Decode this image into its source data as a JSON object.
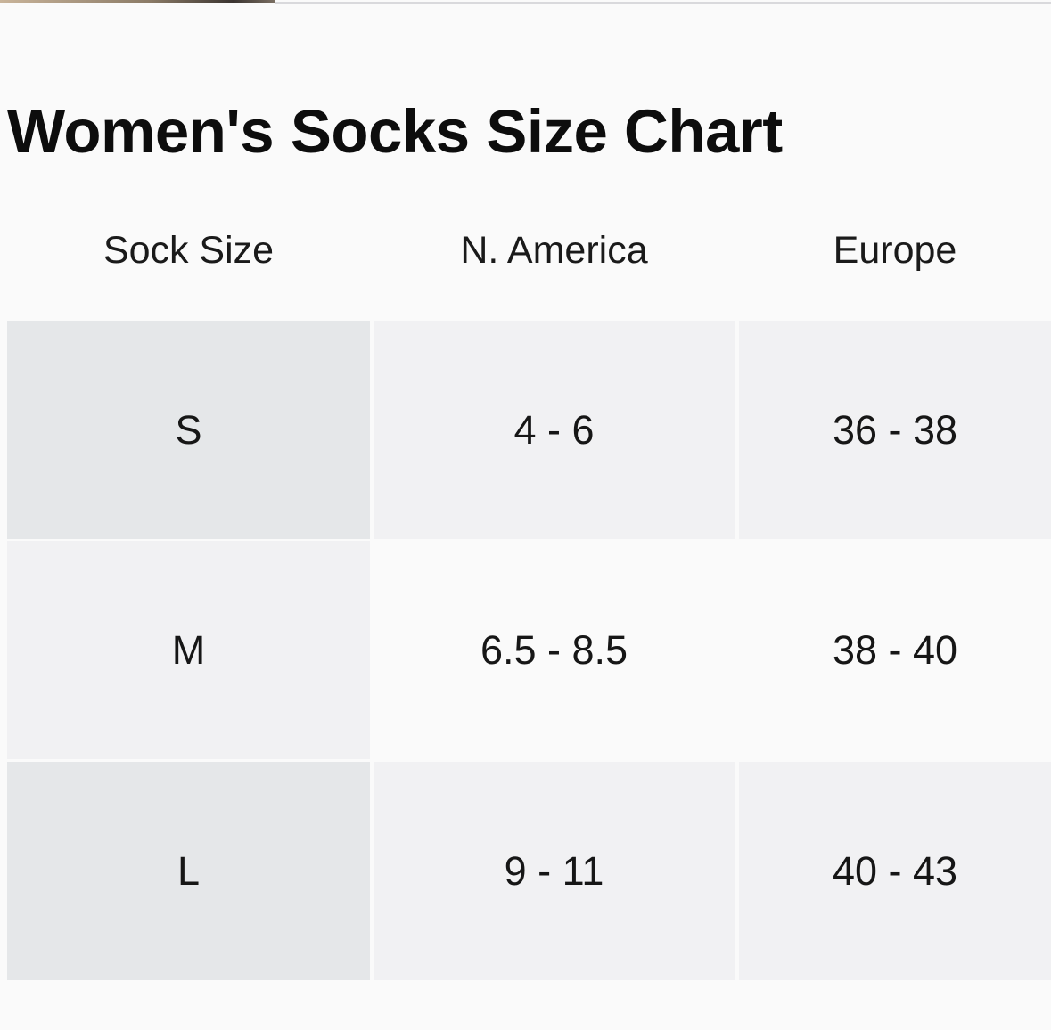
{
  "page": {
    "title": "Women's Socks Size Chart"
  },
  "size_table": {
    "headers": [
      "Sock Size",
      "N. America",
      "Europe"
    ],
    "rows": [
      [
        "S",
        "4 - 6",
        "36 - 38"
      ],
      [
        "M",
        "6.5 - 8.5",
        "38 - 40"
      ],
      [
        "L",
        "9 - 11",
        "40 - 43"
      ]
    ]
  },
  "colors": {
    "background": "#fafafa",
    "first_column_shade": "#e5e7e9",
    "row_shade": "#f1f1f3",
    "text": "#111111"
  }
}
